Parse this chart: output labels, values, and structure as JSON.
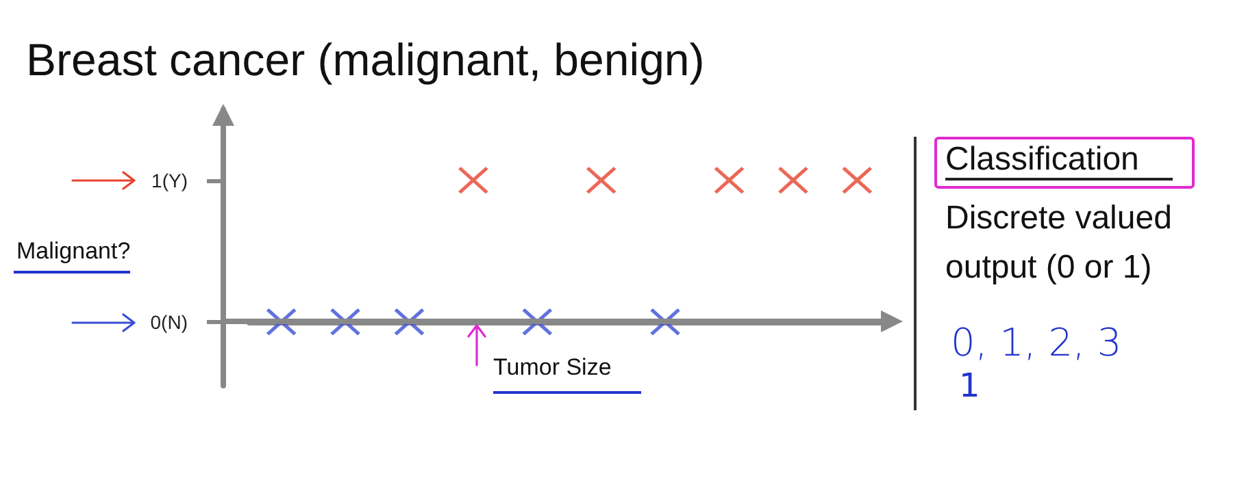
{
  "chart_data": {
    "type": "scatter",
    "title": "Breast cancer (malignant, benign)",
    "xlabel": "Tumor Size",
    "ylabel": "Malignant?",
    "annotations": [
      "Classification",
      "Discrete valued output (0 or 1)",
      "0, 1, 2, 3",
      "1"
    ],
    "categories": [
      null,
      null,
      null,
      null,
      null,
      null,
      null,
      null,
      null,
      null
    ],
    "series": [
      {
        "color": "#3a4fd6",
        "values": [
          0,
          0,
          0,
          null,
          0,
          null,
          0,
          null,
          null,
          null
        ]
      },
      {
        "color": "#e8412c",
        "values": [
          null,
          null,
          null,
          1,
          null,
          1,
          null,
          1,
          1,
          1
        ]
      }
    ],
    "ylim": [
      -0.45,
      1.5
    ],
    "yticks": [
      {
        "value": 0,
        "label": "0(N)"
      },
      {
        "value": 1,
        "label": "1(Y)"
      }
    ],
    "marker": "cross"
  }
}
